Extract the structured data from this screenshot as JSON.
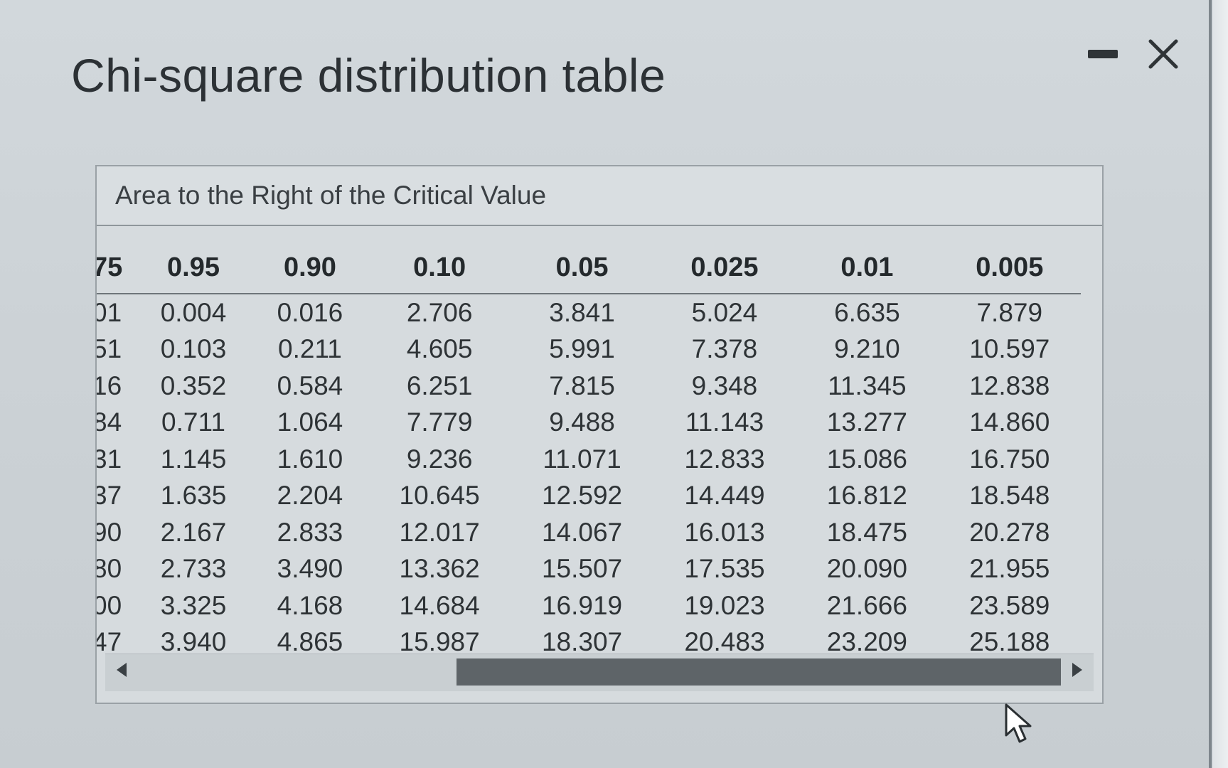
{
  "dialog": {
    "title": "Chi-square distribution table",
    "minimize_icon": "minimize-icon",
    "close_icon": "close-icon"
  },
  "panel": {
    "header": "Area to the Right of the Critical Value",
    "columns": [
      "75",
      "0.95",
      "0.90",
      "0.10",
      "0.05",
      "0.025",
      "0.01",
      "0.005"
    ],
    "rows": [
      [
        "01",
        "0.004",
        "0.016",
        "2.706",
        "3.841",
        "5.024",
        "6.635",
        "7.879"
      ],
      [
        "51",
        "0.103",
        "0.211",
        "4.605",
        "5.991",
        "7.378",
        "9.210",
        "10.597"
      ],
      [
        "16",
        "0.352",
        "0.584",
        "6.251",
        "7.815",
        "9.348",
        "11.345",
        "12.838"
      ],
      [
        "84",
        "0.711",
        "1.064",
        "7.779",
        "9.488",
        "11.143",
        "13.277",
        "14.860"
      ],
      [
        "31",
        "1.145",
        "1.610",
        "9.236",
        "11.071",
        "12.833",
        "15.086",
        "16.750"
      ],
      [
        "37",
        "1.635",
        "2.204",
        "10.645",
        "12.592",
        "14.449",
        "16.812",
        "18.548"
      ],
      [
        "90",
        "2.167",
        "2.833",
        "12.017",
        "14.067",
        "16.013",
        "18.475",
        "20.278"
      ],
      [
        "80",
        "2.733",
        "3.490",
        "13.362",
        "15.507",
        "17.535",
        "20.090",
        "21.955"
      ],
      [
        "00",
        "3.325",
        "4.168",
        "14.684",
        "16.919",
        "19.023",
        "21.666",
        "23.589"
      ],
      [
        "47",
        "3.940",
        "4.865",
        "15.987",
        "18.307",
        "20.483",
        "23.209",
        "25.188"
      ]
    ]
  },
  "scrollbar": {
    "left_arrow_icon": "arrow-left-icon",
    "right_arrow_icon": "arrow-right-icon"
  },
  "colors": {
    "background": "#ccd2d6",
    "text": "#2e3336",
    "scroll_thumb": "#5e6468"
  }
}
